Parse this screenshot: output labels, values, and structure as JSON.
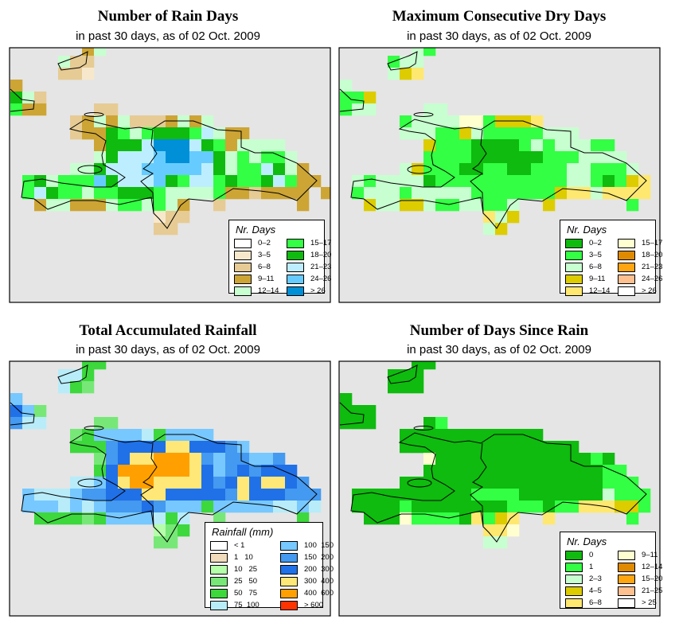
{
  "panels": [
    {
      "title": "Number of Rain Days",
      "subtitle": "in past 30 days, as of  02 Oct. 2009",
      "legend_title": "Nr. Days",
      "legend_labels": [
        "0–2",
        "3–5",
        "6–8",
        "9–11",
        "12–14",
        "15–17",
        "18–20",
        "21–23",
        "24–26",
        "> 26"
      ],
      "legend_colors": [
        "#ffffff",
        "#f7e8cc",
        "#e6cb94",
        "#cda535",
        "#c8ffd0",
        "#33ff44",
        "#0ebb0e",
        "#bdeeff",
        "#66ccff",
        "#0090d8"
      ],
      "grid": [
        "......de",
        "....ecc",
        "....ccb",
        "d",
        "gec",
        "fdd....cc",
        ".....cdedecccdede",
        ".....cddgfefgggfhedd",
        ".......dggghjjjhgfdeeee",
        ".......eghhhijjiigefeffe",
        ".....eeghhhiiiiihgeffhged",
        ".fgefffighhhigfhhfgffghfdd",
        ".fhgffeffgggfeeeefddcdddd d",
        "..deedddeffefed..c......d",
        "............bcc",
        "............cc"
      ]
    },
    {
      "title": "Maximum Consecutive Dry Days",
      "subtitle": "in past 30 days, as of  02 Oct. 2009",
      "legend_title": "Nr. Days",
      "legend_labels": [
        "0–2",
        "3–5",
        "6–8",
        "9–11",
        "12–14",
        "15–17",
        "18–20",
        "21–23",
        "24–26",
        "> 26"
      ],
      "legend_colors": [
        "#0ebb0e",
        "#33ff44",
        "#c8ffd0",
        "#ddcc00",
        "#ffe870",
        "#ffffd0",
        "#e08a00",
        "#ffa510",
        "#ffc090",
        "#ffffff"
      ],
      "grid": [
        "......cb",
        "....bcc",
        "....cde",
        "c",
        "bbd",
        "bcc....cc",
        ".....bccccffbddde",
        ".....cccbbdcbbbbbccc",
        ".......dbbbaaaabcbcccbb",
        ".......bbbbaaaaaabbbcccc",
        ".....cdbbbaabbaabbbccbbbc",
        ".cbccccabbbbbbbbbbbccbabde",
        ".bcccbcccccbbbbbbbdeeceeee",
        "..dccddcbbccbbc..d......b",
        "............ecd",
        "............cd"
      ]
    },
    {
      "title": "Total Accumulated Rainfall",
      "subtitle": "in past 30 days, as of  02 Oct. 2009",
      "legend_title": "Rainfall (mm)",
      "legend_labels": [
        "< 1",
        "1   10",
        "10   25",
        "25   50",
        "50   75",
        "75  100",
        "100  150",
        "150  200",
        "200  300",
        "300  400",
        "400  600",
        "> 600"
      ],
      "legend_colors": [
        "#ffffff",
        "#f0dcbc",
        "#b6ffaa",
        "#77e877",
        "#3cd83c",
        "#b8ecf8",
        "#77c8ff",
        "#4499f0",
        "#2070e8",
        "#ffe878",
        "#ffa000",
        "#ff3300"
      ],
      "grid": [
        "......ee",
        "....ffe",
        "....fed",
        "g",
        "igd",
        "hff....dd",
        ".....deggggfegggg",
        ".....eeehiiiijjiiihg",
        ".......dhijjkkkjhghhggh",
        ".......eikkkkkkjighihiii",
        ".....ffgijkkjjjjihijijjih",
        ".gfffghhiiijjiiiiihjiiihhh",
        ".gggfgfghhhihgggegggggffgf",
        "..eeeedeggggfef..d......e",
        "............cde",
        "............dd"
      ]
    },
    {
      "title": "Number of Days Since Rain",
      "subtitle": "in past 30 days, as of  02 Oct. 2009",
      "legend_title": "Nr. Days",
      "legend_labels": [
        "0",
        "1",
        "2–3",
        "4–5",
        "6–8",
        "9–11",
        "12–14",
        "15–20",
        "21–25",
        "> 25"
      ],
      "legend_colors": [
        "#0ebb0e",
        "#33ff44",
        "#c8ffd0",
        "#ddcc00",
        "#ffe870",
        "#ffffd0",
        "#e08a00",
        "#ffa510",
        "#ffc090",
        "#ffffff"
      ],
      "grid": [
        "......aa",
        "....aaa",
        "....aaa",
        "a",
        "aaa",
        "aaa....ab",
        ".....aaaaaaaaaaaa",
        ".....aaaaaaaaaaaaaaa",
        ".......faaaaaaaaaaaaaba",
        ".......aaaaaaaaaaaaaaabb",
        ".....aaaaaaaaaaaaaaaaabbb",
        ".aaaaaaaaaabbbbaaaaaaacbbb",
        ".aaaabaaaaaaaabbbabbeeeddb",
        "..aaafbbbbaebde..e......b",
        "............eef",
        "............cc"
      ]
    }
  ]
}
